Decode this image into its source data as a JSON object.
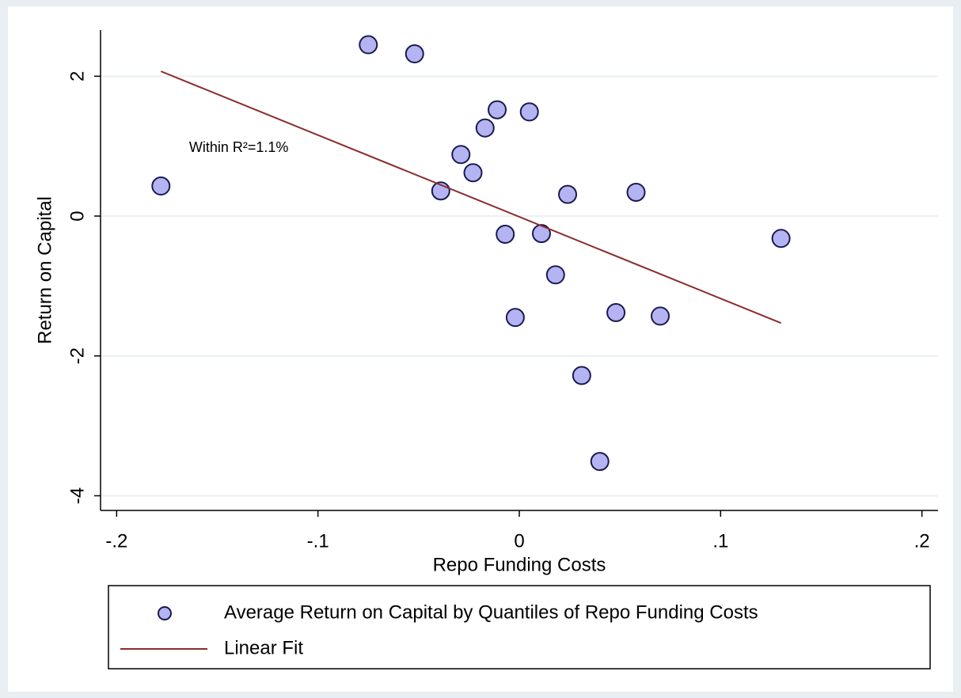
{
  "chart_data": {
    "type": "scatter",
    "x_label": "Repo Funding Costs",
    "y_label": "Return on Capital",
    "series": [
      {
        "name": "Average Return on Capital by Quantiles of Repo Funding Costs",
        "type": "scatter",
        "color": "#b4b4f2",
        "edge_color": "#1a1a50",
        "x": [
          -0.178,
          -0.075,
          -0.052,
          -0.011,
          0.005,
          -0.017,
          -0.029,
          -0.023,
          -0.039,
          0.024,
          0.058,
          0.13,
          -0.007,
          0.011,
          0.018,
          -0.002,
          0.048,
          0.07,
          0.031,
          0.04
        ],
        "values": [
          0.43,
          2.45,
          2.32,
          1.52,
          1.49,
          1.26,
          0.88,
          0.62,
          0.36,
          0.31,
          0.34,
          -0.32,
          -0.26,
          -0.25,
          -0.84,
          -1.45,
          -1.38,
          -1.43,
          -2.28,
          -3.51
        ]
      },
      {
        "name": "Linear Fit",
        "type": "line",
        "color": "#8b2c2c",
        "x": [
          -0.178,
          0.13
        ],
        "values": [
          2.07,
          -1.53
        ]
      }
    ],
    "annotations": [
      {
        "text": "Within R²=1.1%",
        "x": -0.164,
        "y": 0.97
      }
    ],
    "xlim": [
      -0.208,
      0.208
    ],
    "ylim": [
      -4.21,
      2.66
    ],
    "xticks": [
      {
        "value": -0.2,
        "label": "-.2"
      },
      {
        "value": -0.1,
        "label": "-.1"
      },
      0,
      {
        "value": 0.1,
        "label": ".1"
      },
      {
        "value": 0.2,
        "label": ".2"
      }
    ],
    "yticks": [
      -4,
      -2,
      0,
      2
    ],
    "grid": true
  }
}
